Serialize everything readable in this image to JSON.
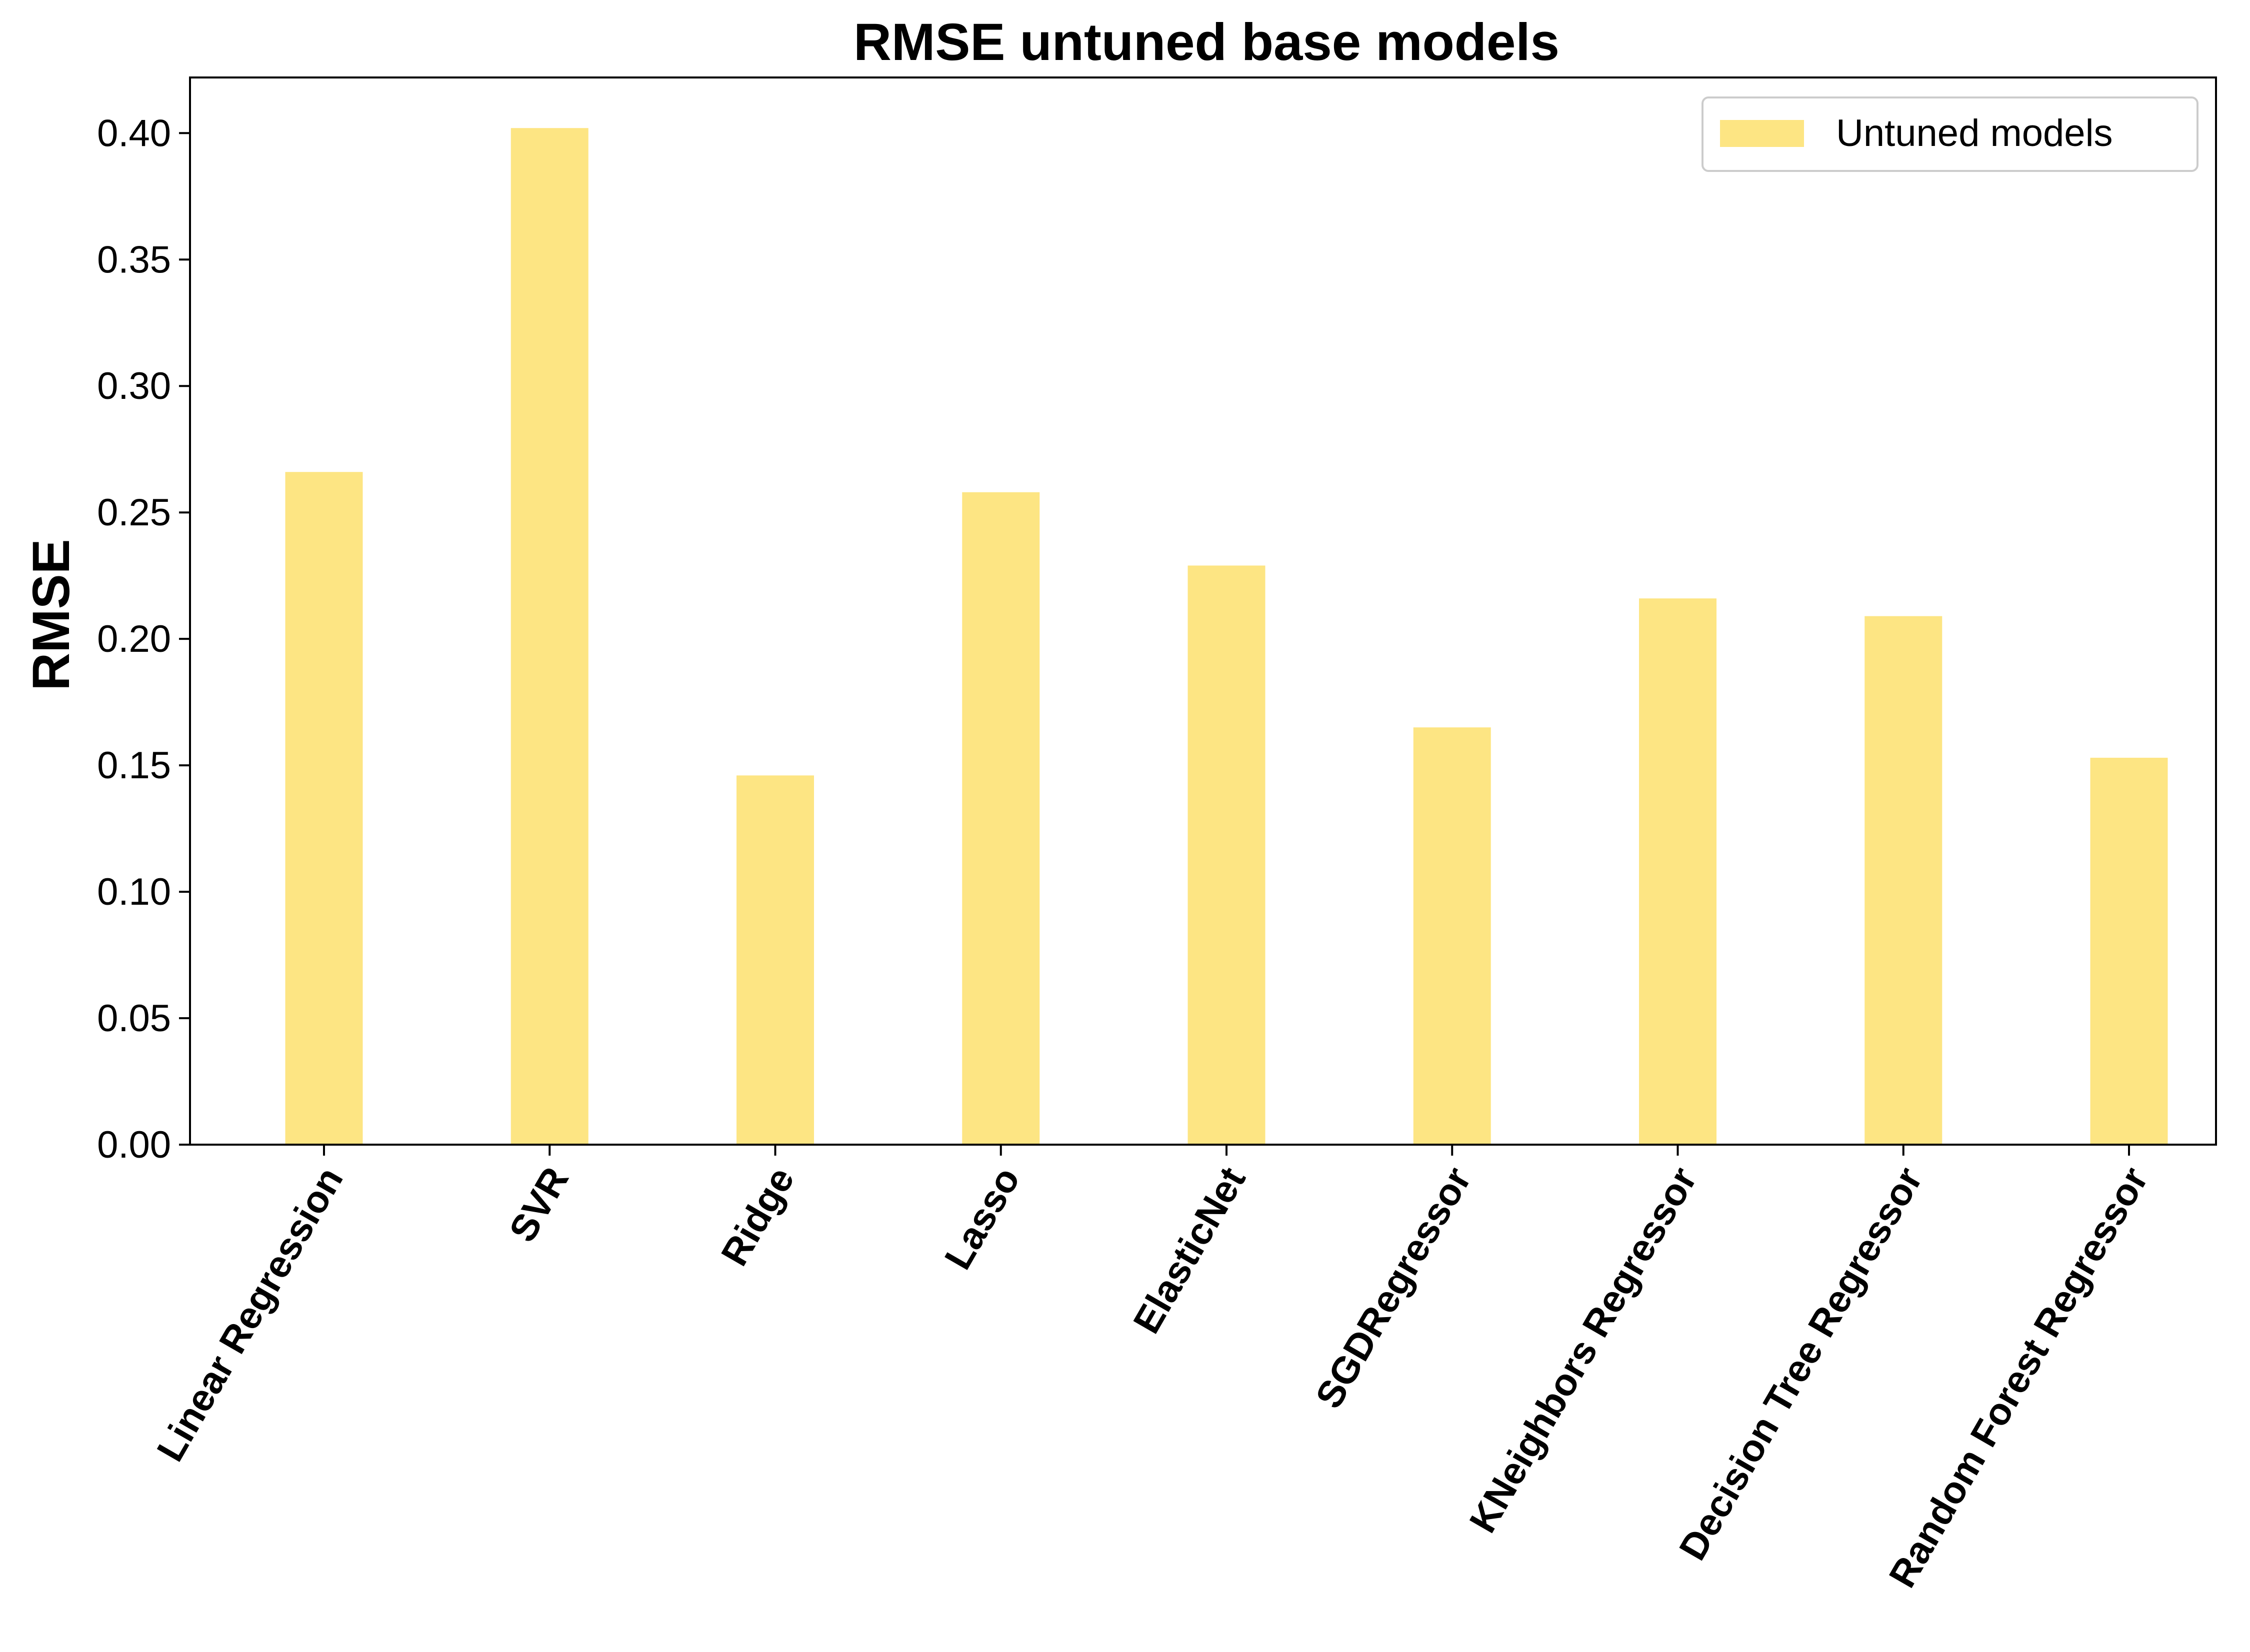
{
  "chart_data": {
    "type": "bar",
    "title": "RMSE untuned base models",
    "xlabel": "",
    "ylabel": "RMSE",
    "categories": [
      "Linear Regression",
      "SVR",
      "Ridge",
      "Lasso",
      "ElasticNet",
      "SGDRegressor",
      "KNeighbors Regressor",
      "Decision Tree Regressor",
      "Random Forest Regressor"
    ],
    "series": [
      {
        "name": "Untuned models",
        "color": "#fde583",
        "values": [
          0.266,
          0.402,
          0.146,
          0.258,
          0.229,
          0.165,
          0.216,
          0.209,
          0.153
        ]
      }
    ],
    "ylim": [
      0,
      0.422
    ],
    "yticks": [
      "0.00",
      "0.05",
      "0.10",
      "0.15",
      "0.20",
      "0.25",
      "0.30",
      "0.35",
      "0.40"
    ],
    "grid": false,
    "legend_position": "top-right"
  }
}
